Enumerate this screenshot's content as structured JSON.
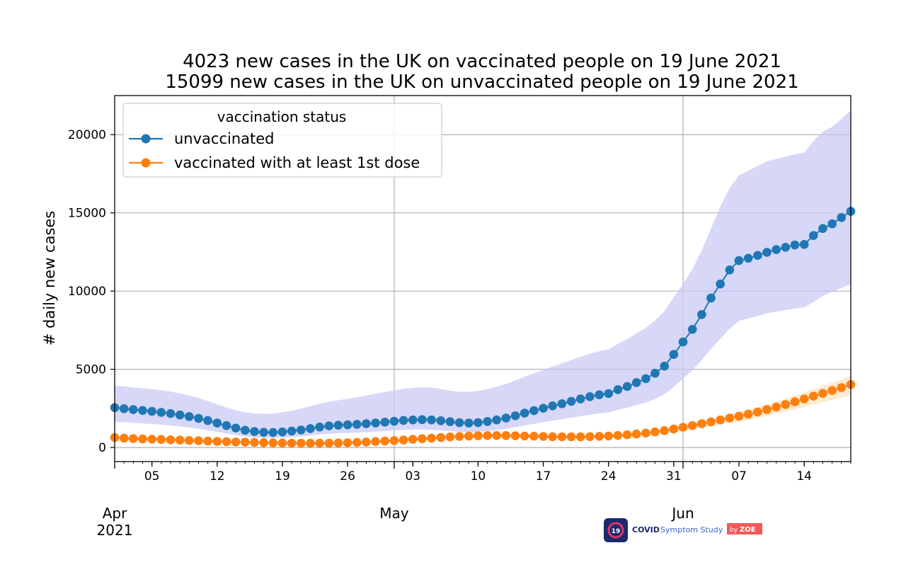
{
  "colors": {
    "unvaccinated": "#1f77b4",
    "vaccinated": "#ff7f0e",
    "unvaccinated_band": "#c9c9f6",
    "vaccinated_band": "#fde3c2",
    "grid": "#b0b0b0",
    "logo_bg": "#1a2a6c",
    "logo_badge": "#f05a5a"
  },
  "logo": {
    "icon_text": "19",
    "name": "COVID",
    "name_rest": "Symptom Study",
    "badge_prefix": "by",
    "badge": "ZOE",
    "icon": "covid-symptom-study-logo-icon"
  },
  "chart_data": {
    "type": "line",
    "title_lines": [
      "4023 new cases in the UK on vaccinated people on 19 June 2021",
      "15099 new cases in the UK on unvaccinated people on 19 June 2021"
    ],
    "xlabel": "",
    "ylabel": "# daily new cases",
    "x_start": "2021-04-01",
    "x_end": "2021-06-19",
    "ylim": [
      -900,
      22500
    ],
    "yticks": [
      0,
      5000,
      10000,
      15000,
      20000
    ],
    "xticks": [
      {
        "date": "2021-04-05",
        "label": "05"
      },
      {
        "date": "2021-04-12",
        "label": "12"
      },
      {
        "date": "2021-04-19",
        "label": "19"
      },
      {
        "date": "2021-04-26",
        "label": "26"
      },
      {
        "date": "2021-05-03",
        "label": "03"
      },
      {
        "date": "2021-05-10",
        "label": "10"
      },
      {
        "date": "2021-05-17",
        "label": "17"
      },
      {
        "date": "2021-05-24",
        "label": "24"
      },
      {
        "date": "2021-05-31",
        "label": "31"
      },
      {
        "date": "2021-06-07",
        "label": "07"
      },
      {
        "date": "2021-06-14",
        "label": "14"
      }
    ],
    "month_labels": [
      {
        "date": "2021-04-01",
        "label": "Apr",
        "sub": "2021"
      },
      {
        "date": "2021-05-01",
        "label": "May",
        "sub": ""
      },
      {
        "date": "2021-06-01",
        "label": "Jun",
        "sub": ""
      }
    ],
    "grid": true,
    "major_gridlines_x": [
      "2021-05-01",
      "2021-06-01"
    ],
    "legend": {
      "title": "vaccination status",
      "placement": "upper-left"
    },
    "series": [
      {
        "name": "unvaccinated",
        "color": "#1f77b4",
        "values": [
          2550,
          2480,
          2420,
          2370,
          2310,
          2240,
          2170,
          2080,
          1980,
          1860,
          1720,
          1560,
          1400,
          1240,
          1100,
          1020,
          970,
          960,
          990,
          1050,
          1120,
          1210,
          1310,
          1380,
          1420,
          1450,
          1480,
          1520,
          1560,
          1620,
          1680,
          1730,
          1760,
          1780,
          1760,
          1710,
          1650,
          1590,
          1560,
          1590,
          1660,
          1760,
          1880,
          2030,
          2200,
          2360,
          2510,
          2660,
          2800,
          2950,
          3100,
          3250,
          3370,
          3450,
          3700,
          3900,
          4150,
          4400,
          4750,
          5200,
          5950,
          6750,
          7550,
          8500,
          9550,
          10450,
          11350,
          11950,
          12100,
          12280,
          12480,
          12650,
          12800,
          12950,
          12980,
          13550,
          14000,
          14300,
          14700,
          15099
        ],
        "lower": [
          1650,
          1620,
          1580,
          1540,
          1500,
          1460,
          1410,
          1350,
          1280,
          1200,
          1100,
          1000,
          890,
          790,
          700,
          640,
          610,
          600,
          620,
          660,
          710,
          770,
          830,
          880,
          910,
          930,
          950,
          980,
          1010,
          1050,
          1090,
          1120,
          1140,
          1150,
          1130,
          1090,
          1050,
          1000,
          980,
          1000,
          1050,
          1120,
          1200,
          1300,
          1410,
          1510,
          1610,
          1710,
          1800,
          1900,
          2000,
          2100,
          2180,
          2240,
          2400,
          2540,
          2710,
          2870,
          3100,
          3400,
          3880,
          4400,
          4950,
          5600,
          6300,
          6950,
          7600,
          8100,
          8250,
          8400,
          8580,
          8680,
          8790,
          8880,
          8950,
          9300,
          9700,
          9950,
          10200,
          10450
        ],
        "upper": [
          3950,
          3900,
          3840,
          3790,
          3730,
          3660,
          3580,
          3460,
          3320,
          3160,
          2970,
          2760,
          2560,
          2380,
          2250,
          2180,
          2150,
          2170,
          2240,
          2350,
          2490,
          2650,
          2800,
          2920,
          3020,
          3110,
          3210,
          3320,
          3430,
          3550,
          3660,
          3750,
          3820,
          3860,
          3830,
          3740,
          3630,
          3560,
          3560,
          3620,
          3740,
          3890,
          4070,
          4280,
          4520,
          4740,
          4950,
          5170,
          5380,
          5590,
          5800,
          5990,
          6150,
          6280,
          6620,
          6930,
          7290,
          7650,
          8120,
          8700,
          9600,
          10450,
          11400,
          12600,
          14000,
          15400,
          16600,
          17400,
          17700,
          18000,
          18300,
          18450,
          18600,
          18750,
          18850,
          19600,
          20200,
          20500,
          21000,
          21550
        ]
      },
      {
        "name": "vaccinated with at least 1st dose",
        "color": "#ff7f0e",
        "values": [
          640,
          600,
          570,
          550,
          530,
          510,
          490,
          470,
          450,
          430,
          410,
          390,
          370,
          355,
          340,
          325,
          310,
          295,
          285,
          278,
          272,
          270,
          272,
          278,
          290,
          305,
          325,
          350,
          380,
          410,
          445,
          480,
          520,
          560,
          600,
          640,
          675,
          705,
          730,
          750,
          760,
          765,
          760,
          750,
          735,
          720,
          705,
          690,
          680,
          678,
          682,
          692,
          710,
          735,
          770,
          810,
          860,
          920,
          990,
          1080,
          1180,
          1290,
          1400,
          1520,
          1640,
          1760,
          1880,
          2000,
          2130,
          2270,
          2420,
          2580,
          2750,
          2920,
          3100,
          3280,
          3460,
          3640,
          3830,
          4023
        ],
        "lower": [
          560,
          525,
          498,
          480,
          462,
          444,
          426,
          408,
          390,
          372,
          354,
          336,
          318,
          304,
          290,
          277,
          263,
          250,
          241,
          235,
          229,
          227,
          229,
          234,
          244,
          257,
          274,
          295,
          321,
          347,
          377,
          407,
          442,
          476,
          510,
          544,
          574,
          599,
          620,
          637,
          645,
          649,
          644,
          635,
          621,
          608,
          594,
          580,
          570,
          567,
          570,
          578,
          593,
          614,
          643,
          676,
          718,
          768,
          826,
          902,
          985,
          1076,
          1168,
          1268,
          1368,
          1468,
          1568,
          1668,
          1776,
          1892,
          2017,
          2150,
          2292,
          2433,
          2583,
          2733,
          2883,
          3033,
          3191,
          3352
        ],
        "upper": [
          730,
          684,
          650,
          627,
          604,
          581,
          559,
          536,
          513,
          490,
          467,
          445,
          422,
          405,
          388,
          371,
          353,
          336,
          325,
          317,
          310,
          308,
          310,
          317,
          331,
          348,
          371,
          399,
          433,
          467,
          507,
          547,
          593,
          638,
          684,
          730,
          770,
          804,
          832,
          855,
          866,
          872,
          866,
          855,
          838,
          821,
          804,
          787,
          775,
          773,
          777,
          789,
          809,
          838,
          878,
          923,
          980,
          1049,
          1129,
          1231,
          1345,
          1471,
          1596,
          1733,
          1870,
          2006,
          2143,
          2280,
          2428,
          2588,
          2759,
          2941,
          3135,
          3329,
          3534,
          3739,
          3944,
          4150,
          4366,
          4586
        ]
      }
    ]
  }
}
